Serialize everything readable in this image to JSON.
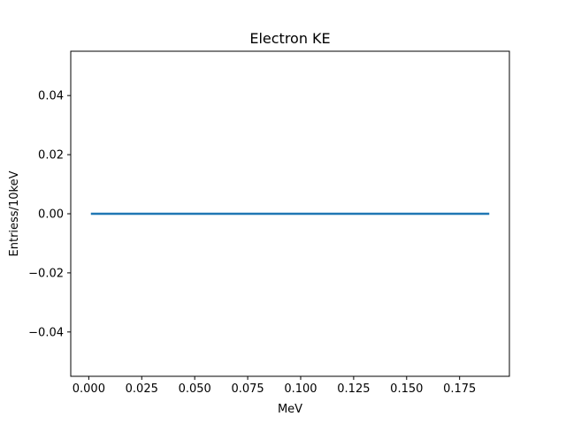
{
  "chart_data": {
    "type": "line",
    "title": "Electron KE",
    "xlabel": "MeV",
    "ylabel": "Entriess/10keV",
    "xlim": [
      -0.0085,
      0.1985
    ],
    "ylim": [
      -0.055,
      0.055
    ],
    "x_ticks": [
      0.0,
      0.025,
      0.05,
      0.075,
      0.1,
      0.125,
      0.15,
      0.175
    ],
    "x_tick_labels": [
      "0.000",
      "0.025",
      "0.050",
      "0.075",
      "0.100",
      "0.125",
      "0.150",
      "0.175"
    ],
    "y_ticks": [
      -0.04,
      -0.02,
      0.0,
      0.02,
      0.04
    ],
    "y_tick_labels": [
      "−0.04",
      "−0.02",
      "0.00",
      "0.02",
      "0.04"
    ],
    "grid": false,
    "series": [
      {
        "color": "#1f77b4",
        "x": [
          0.001,
          0.011,
          0.021,
          0.031,
          0.041,
          0.051,
          0.061,
          0.071,
          0.081,
          0.091,
          0.101,
          0.111,
          0.121,
          0.131,
          0.141,
          0.151,
          0.161,
          0.171,
          0.181,
          0.189
        ],
        "y": [
          0,
          0,
          0,
          0,
          0,
          0,
          0,
          0,
          0,
          0,
          0,
          0,
          0,
          0,
          0,
          0,
          0,
          0,
          0,
          0
        ]
      }
    ]
  }
}
